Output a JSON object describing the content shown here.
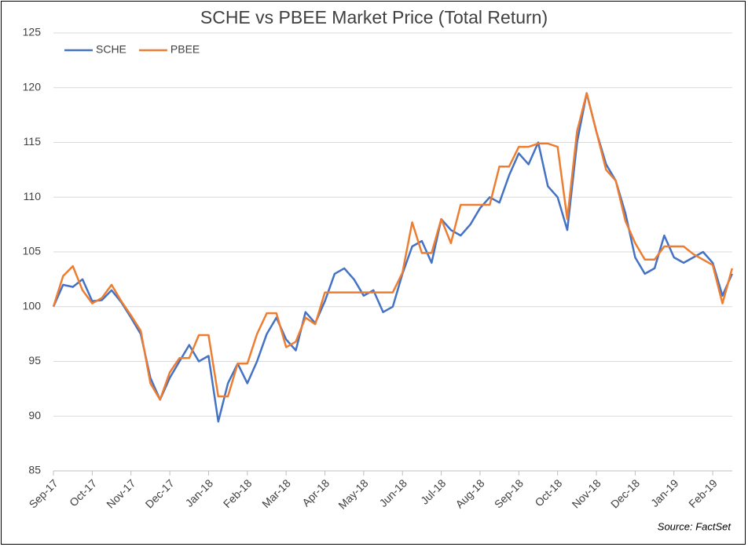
{
  "chart_data": {
    "type": "line",
    "title": "SCHE vs PBEE Market Price (Total Return)",
    "source": "Source: FactSet",
    "categories": [
      "Sep-17",
      null,
      null,
      null,
      "Oct-17",
      null,
      null,
      null,
      "Nov-17",
      null,
      null,
      null,
      "Dec-17",
      null,
      null,
      null,
      "Jan-18",
      null,
      null,
      null,
      "Feb-18",
      null,
      null,
      null,
      "Mar-18",
      null,
      null,
      null,
      "Apr-18",
      null,
      null,
      null,
      "May-18",
      null,
      null,
      null,
      "Jun-18",
      null,
      null,
      null,
      "Jul-18",
      null,
      null,
      null,
      "Aug-18",
      null,
      null,
      null,
      "Sep-18",
      null,
      null,
      null,
      "Oct-18",
      null,
      null,
      null,
      "Nov-18",
      null,
      null,
      null,
      "Dec-18",
      null,
      null,
      null,
      "Jan-19",
      null,
      null,
      null,
      "Feb-19",
      null,
      null
    ],
    "series": [
      {
        "name": "SCHE",
        "color": "#4472c4",
        "values": [
          100,
          102,
          101.8,
          102.5,
          100.5,
          100.6,
          101.5,
          100.4,
          99,
          97.5,
          93.5,
          91.5,
          93.5,
          95,
          96.5,
          95,
          95.5,
          89.5,
          93,
          94.8,
          93,
          95,
          97.5,
          99,
          97,
          96,
          99.5,
          98.5,
          100.5,
          103,
          103.5,
          102.5,
          101,
          101.5,
          99.5,
          100,
          103,
          105.5,
          106,
          104,
          108,
          107,
          106.5,
          107.5,
          109,
          110,
          109.5,
          112,
          114,
          113,
          115,
          111,
          110,
          107,
          115,
          119.5,
          116,
          113,
          111.5,
          108.5,
          104.5,
          103,
          103.5,
          106.5,
          104.5,
          104,
          104.5,
          105,
          104,
          101,
          103
        ]
      },
      {
        "name": "PBEE",
        "color": "#ed7d31",
        "values": [
          100,
          102.8,
          103.7,
          101.5,
          100.3,
          100.8,
          102,
          100.5,
          99.2,
          97.8,
          93,
          91.5,
          94,
          95.3,
          95.3,
          97.4,
          97.4,
          91.8,
          91.8,
          94.8,
          94.8,
          97.5,
          99.4,
          99.4,
          96.3,
          96.8,
          99,
          98.4,
          101.3,
          101.3,
          101.3,
          101.3,
          101.3,
          101.3,
          101.3,
          101.3,
          103.1,
          107.7,
          104.9,
          104.9,
          108,
          105.8,
          109.3,
          109.3,
          109.3,
          109.3,
          112.8,
          112.8,
          114.6,
          114.6,
          114.9,
          114.9,
          114.6,
          108,
          116,
          119.5,
          116,
          112.5,
          111.5,
          107.8,
          105.8,
          104.3,
          104.3,
          105.5,
          105.5,
          105.5,
          104.8,
          104.3,
          103.8,
          100.3,
          103.5
        ]
      }
    ],
    "ylim": [
      85,
      125
    ],
    "yticks": [
      85,
      90,
      95,
      100,
      105,
      110,
      115,
      120,
      125
    ],
    "grid": true,
    "legend": "top-left"
  }
}
